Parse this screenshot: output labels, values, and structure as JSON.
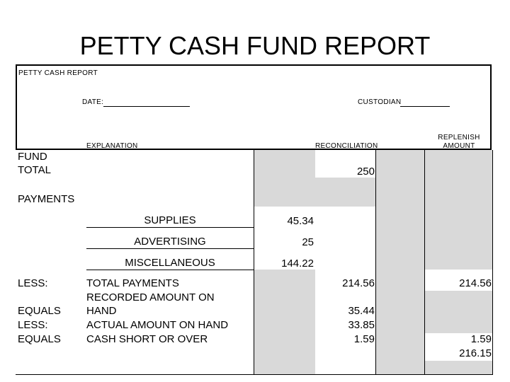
{
  "title": "PETTY CASH FUND REPORT",
  "header": {
    "report_label": "PETTY CASH REPORT",
    "date_label": "DATE:",
    "custodian_label": "CUSTODIAN"
  },
  "columns": {
    "explanation": "EXPLANATION",
    "reconciliation": "RECONCILIATION",
    "replenish_line1": "REPLENISH",
    "replenish_line2": "AMOUNT"
  },
  "fund": {
    "label_line1": "FUND",
    "label_line2": "TOTAL",
    "amount": "250"
  },
  "payments": {
    "label": "PAYMENTS",
    "items": [
      {
        "name": "SUPPLIES",
        "amount": "45.34"
      },
      {
        "name": "ADVERTISING",
        "amount": "25"
      },
      {
        "name": "MISCELLANEOUS",
        "amount": "144.22"
      }
    ]
  },
  "summary": {
    "less1": "LESS:",
    "total_payments": "TOTAL PAYMENTS",
    "total_payments_amount": "214.56",
    "total_payments_replenish": "214.56",
    "equals1": "EQUALS",
    "recorded_line1": "RECORDED AMOUNT ON",
    "recorded_line2": "HAND",
    "recorded_amount": "35.44",
    "less2": "LESS:",
    "actual": "ACTUAL AMOUNT ON HAND",
    "actual_amount": "33.85",
    "equals2": "EQUALS",
    "short": "CASH SHORT OR OVER",
    "short_amount": "1.59",
    "short_replenish": "1.59",
    "replenish_total": "216.15"
  }
}
